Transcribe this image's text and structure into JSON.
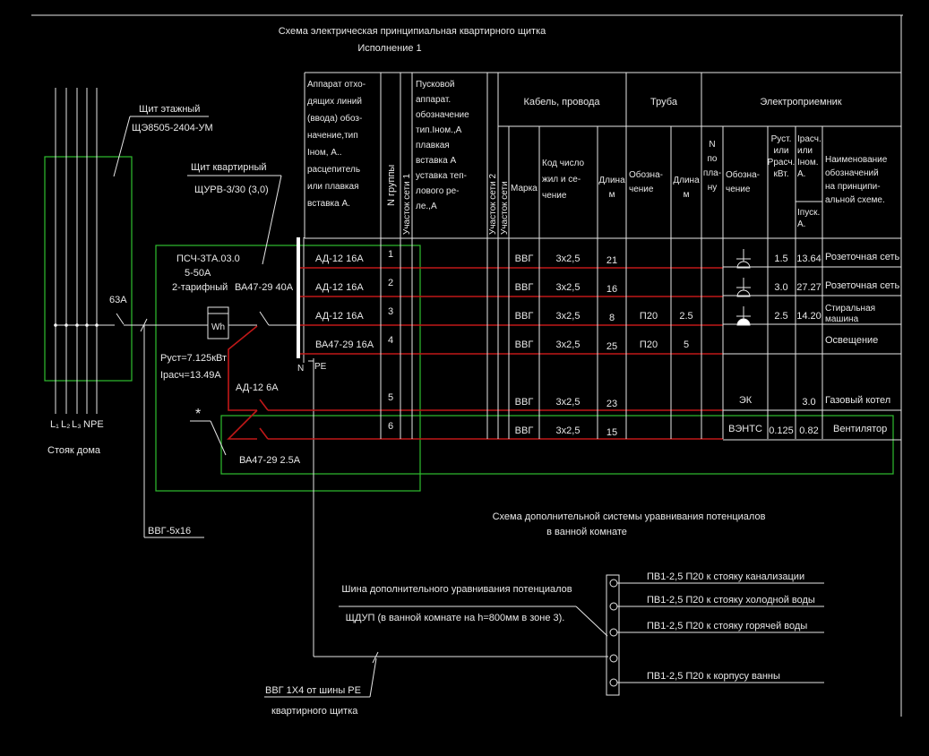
{
  "title": {
    "line1": "Схема электрическая принципиальная квартирного щитка",
    "line2": "Исполнение 1"
  },
  "colors": {
    "background": "#000000",
    "lines": "#e6e6e6",
    "circuits": "#c01818",
    "enclosures": "#2fbf2f"
  },
  "left": {
    "floor_panel_label": "Щит этажный",
    "floor_panel_type": "ЩЭ8505-2404-УМ",
    "flat_panel_label": "Щит квартирный",
    "flat_panel_type": "ЩУРВ-3/30 (3,0)",
    "meter_type": "ПСЧ-3ТА.03.0",
    "meter_range": "5-50А",
    "meter_tariff": "2-тарифный",
    "meter_symbol": "Wh",
    "input_breaker": "63А",
    "main_breaker": "ВА47-29 40А",
    "p_set": "Руст=7.125кВт",
    "i_calc": "Iрасч=13.49А",
    "rcd_label": "АД-12 6А",
    "asterisk": "*",
    "vent_breaker": "ВА47-29 2.5А",
    "riser_phases": [
      "L₁",
      "L₂",
      "L₃",
      "N",
      "PE"
    ],
    "riser_label": "Стояк дома",
    "feed_cable": "ВВГ-5х16",
    "bus_n": "N",
    "bus_pe": "PE"
  },
  "table": {
    "headers": {
      "apparatus": [
        "Аппарат отхо-",
        "дящих линий",
        "(ввода) обоз-",
        "начение,тип",
        "Iном, А..",
        "расцепитель",
        "или плавкая",
        "вставка А."
      ],
      "group_no": "N группы",
      "section1": "Участок сети 1",
      "starter": [
        "Пусковой",
        "аппарат.",
        "обозначение",
        "тип.Iном.,А",
        "плавкая",
        "вставка А",
        "уставка теп-",
        "лового ре-",
        "ле.,А"
      ],
      "section2": "Участок сети 2",
      "section3": "Участок сети",
      "cable": "Кабель, провода",
      "pipe": "Труба",
      "receiver": "Электроприемник",
      "brand": "Марка",
      "code": [
        "Код число",
        "жил и се-",
        "чение"
      ],
      "length": [
        "Длина",
        "м"
      ],
      "pipe_designation": [
        "Обозна-",
        "чение"
      ],
      "pipe_length": [
        "Длина",
        "м"
      ],
      "plan_no": [
        "N",
        "по",
        "пла-",
        "ну"
      ],
      "rec_designation": [
        "Обозна-",
        "чение"
      ],
      "power": [
        "Руст.",
        "или",
        "Ррасч.",
        "кВт."
      ],
      "current": [
        "Iрасч.",
        "или",
        "Iном.",
        "А."
      ],
      "start_current": [
        "Iпуск.",
        "А."
      ],
      "name": [
        "Наименование",
        "обозначений",
        "на принципи-",
        "альной схеме."
      ]
    },
    "rows": [
      {
        "apparatus": "АД-12 16А",
        "group": "1",
        "brand": "ВВГ",
        "code": "3х2,5",
        "length": "21",
        "pipe": "",
        "pipe_length": "",
        "symbol": "socket",
        "designation": "",
        "power": "1.5",
        "current": "13.64",
        "name": [
          "Розеточная сеть"
        ]
      },
      {
        "apparatus": "АД-12 16А",
        "group": "2",
        "brand": "ВВГ",
        "code": "3х2,5",
        "length": "16",
        "pipe": "",
        "pipe_length": "",
        "symbol": "socket",
        "designation": "",
        "power": "3.0",
        "current": "27.27",
        "name": [
          "Розеточная сеть"
        ]
      },
      {
        "apparatus": "АД-12 16А",
        "group": "3",
        "brand": "ВВГ",
        "code": "3х2,5",
        "length": "8",
        "pipe": "П20",
        "pipe_length": "2.5",
        "symbol": "socket-filled",
        "designation": "",
        "power": "2.5",
        "current": "14.20",
        "name": [
          "Стиральная",
          "машина"
        ]
      },
      {
        "apparatus": "ВА47-29 16А",
        "group": "4",
        "brand": "ВВГ",
        "code": "3х2,5",
        "length": "25",
        "pipe": "П20",
        "pipe_length": "5",
        "symbol": "",
        "designation": "",
        "power": "",
        "current": "",
        "name": [
          "Освещение"
        ]
      },
      {
        "apparatus": "",
        "group": "5",
        "brand": "ВВГ",
        "code": "3х2,5",
        "length": "23",
        "pipe": "",
        "pipe_length": "",
        "symbol": "",
        "designation": "ЭК",
        "power": "",
        "current": "3.0",
        "name": [
          "Газовый котел"
        ]
      },
      {
        "apparatus": "",
        "group": "6",
        "brand": "ВВГ",
        "code": "3х2,5",
        "length": "15",
        "pipe": "",
        "pipe_length": "",
        "symbol": "",
        "designation": "ВЭНТС",
        "power": "0.125",
        "current": "0.82",
        "name": [
          "Вентилятор"
        ]
      }
    ]
  },
  "bath": {
    "title1": "Схема дополнительной системы уравнивания потенциалов",
    "title2": "в ванной комнате",
    "bus_label1": "Шина дополнительного уравнивания потенциалов",
    "bus_label2": "ЩДУП (в ванной комнате на h=800мм в зоне 3).",
    "cable1": "ВВГ 1Х4 от шины РЕ",
    "cable2": "квартирного щитка",
    "connections": [
      "ПВ1-2,5 П20 к стояку канализации",
      "ПВ1-2,5 П20 к стояку холодной воды",
      "ПВ1-2,5 П20 к стояку горячей воды",
      "",
      "ПВ1-2,5 П20 к корпусу ванны"
    ]
  }
}
